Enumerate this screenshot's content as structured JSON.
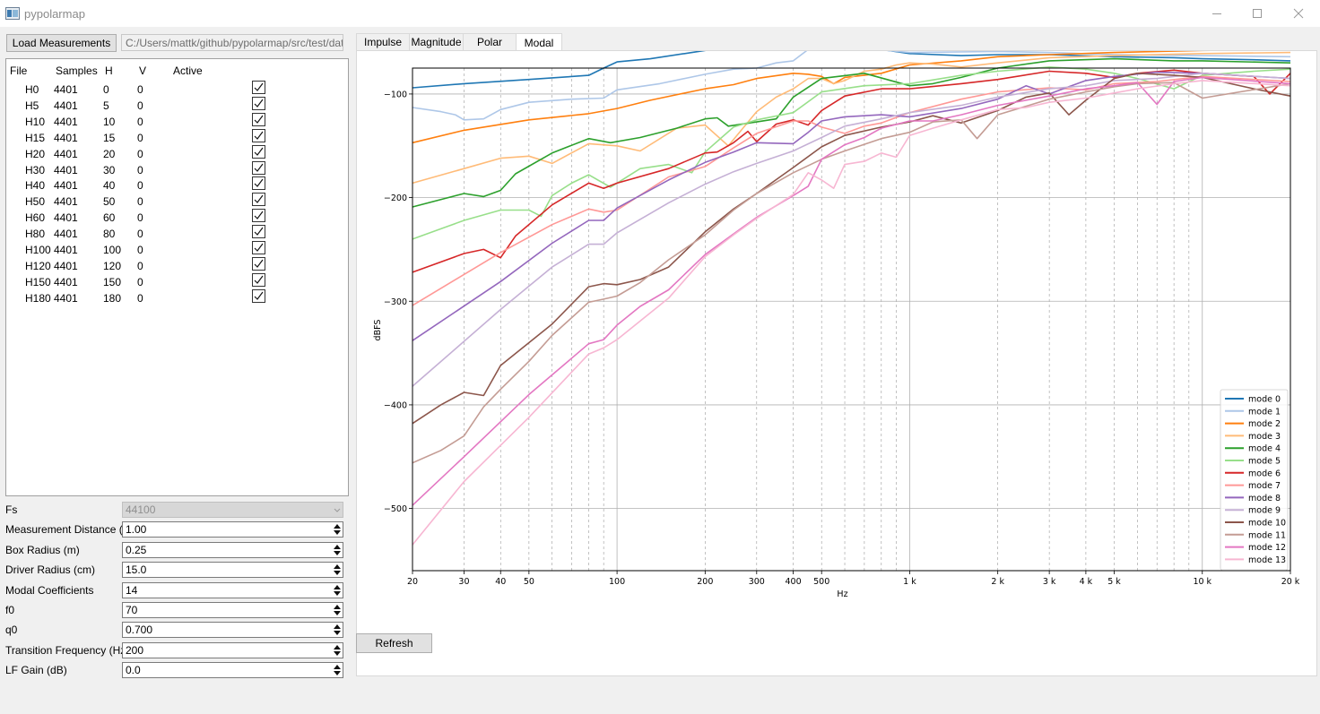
{
  "window": {
    "title": "pypolarmap"
  },
  "toolbar": {
    "load_label": "Load Measurements",
    "path": "C:/Users/mattk/github/pypolarmap/src/test/data"
  },
  "table": {
    "headers": [
      "File",
      "Samples",
      "H",
      "V",
      "Active"
    ],
    "rows": [
      {
        "file": "H0",
        "samples": "4401",
        "h": "0",
        "v": "0",
        "active": true
      },
      {
        "file": "H5",
        "samples": "4401",
        "h": "5",
        "v": "0",
        "active": true
      },
      {
        "file": "H10",
        "samples": "4401",
        "h": "10",
        "v": "0",
        "active": true
      },
      {
        "file": "H15",
        "samples": "4401",
        "h": "15",
        "v": "0",
        "active": true
      },
      {
        "file": "H20",
        "samples": "4401",
        "h": "20",
        "v": "0",
        "active": true
      },
      {
        "file": "H30",
        "samples": "4401",
        "h": "30",
        "v": "0",
        "active": true
      },
      {
        "file": "H40",
        "samples": "4401",
        "h": "40",
        "v": "0",
        "active": true
      },
      {
        "file": "H50",
        "samples": "4401",
        "h": "50",
        "v": "0",
        "active": true
      },
      {
        "file": "H60",
        "samples": "4401",
        "h": "60",
        "v": "0",
        "active": true
      },
      {
        "file": "H80",
        "samples": "4401",
        "h": "80",
        "v": "0",
        "active": true
      },
      {
        "file": "H100",
        "samples": "4401",
        "h": "100",
        "v": "0",
        "active": true
      },
      {
        "file": "H120",
        "samples": "4401",
        "h": "120",
        "v": "0",
        "active": true
      },
      {
        "file": "H150",
        "samples": "4401",
        "h": "150",
        "v": "0",
        "active": true
      },
      {
        "file": "H180",
        "samples": "4401",
        "h": "180",
        "v": "0",
        "active": true
      }
    ]
  },
  "form": [
    {
      "label": "Fs",
      "value": "44100",
      "kind": "combo",
      "disabled": true
    },
    {
      "label": "Measurement Distance (m)",
      "value": "1.00",
      "kind": "spin"
    },
    {
      "label": "Box Radius (m)",
      "value": "0.25",
      "kind": "spin"
    },
    {
      "label": "Driver Radius (cm)",
      "value": "15.0",
      "kind": "spin"
    },
    {
      "label": "Modal Coefficients",
      "value": "14",
      "kind": "spin"
    },
    {
      "label": "f0",
      "value": "70",
      "kind": "spin"
    },
    {
      "label": "q0",
      "value": "0.700",
      "kind": "spin"
    },
    {
      "label": "Transition Frequency (Hz)",
      "value": "200",
      "kind": "spin"
    },
    {
      "label": "LF Gain (dB)",
      "value": "0.0",
      "kind": "spin"
    }
  ],
  "tabs": [
    {
      "label": "Impulse",
      "active": false
    },
    {
      "label": "Magnitude",
      "active": false
    },
    {
      "label": "Polar",
      "active": false
    },
    {
      "label": "Modal",
      "active": true
    }
  ],
  "refresh_label": "Refresh",
  "chart_data": {
    "type": "line",
    "xlabel": "Hz",
    "ylabel": "dBFS",
    "xscale": "log",
    "xlim": [
      20,
      20000
    ],
    "ylim": [
      -560,
      -75
    ],
    "x_ticks": [
      20,
      30,
      40,
      50,
      100,
      200,
      300,
      400,
      500,
      1000,
      2000,
      3000,
      4000,
      5000,
      10000,
      20000
    ],
    "x_tick_labels": [
      "20",
      "30",
      "40",
      "50",
      "100",
      "200",
      "300",
      "400",
      "500",
      "1 k",
      "2 k",
      "3 k",
      "4 k",
      "5 k",
      "10 k",
      "20 k"
    ],
    "y_ticks": [
      -100,
      -200,
      -300,
      -400,
      -500
    ],
    "y_tick_labels": [
      "−100",
      "−200",
      "−300",
      "−400",
      "−500"
    ],
    "grid": true,
    "legend_position": "lower-right",
    "series": [
      {
        "name": "mode 0",
        "color": "#1f77b4",
        "x": [
          20,
          30,
          50,
          80,
          90,
          100,
          130,
          200,
          300,
          400,
          450,
          600,
          800,
          1000,
          1500,
          2000,
          3000,
          5000,
          8000,
          10000,
          15000,
          20000
        ],
        "y": [
          -94,
          -90,
          -86,
          -82,
          -75,
          -69,
          -66,
          -58,
          -52,
          -48,
          -53,
          -55,
          -57,
          -61,
          -63,
          -62,
          -62,
          -64,
          -65,
          -66,
          -67,
          -68
        ]
      },
      {
        "name": "mode 1",
        "color": "#aec7e8",
        "x": [
          20,
          25,
          28,
          30,
          35,
          40,
          50,
          70,
          90,
          100,
          140,
          200,
          250,
          300,
          350,
          400,
          450,
          500,
          700,
          1000,
          2000,
          3000,
          5000,
          10000,
          20000
        ],
        "y": [
          -113,
          -117,
          -120,
          -125,
          -124,
          -115,
          -108,
          -105,
          -104,
          -96,
          -90,
          -81,
          -76,
          -75,
          -70,
          -68,
          -57,
          -56,
          -56,
          -60,
          -59,
          -60,
          -62,
          -63,
          -64
        ]
      },
      {
        "name": "mode 2",
        "color": "#ff7f0e",
        "x": [
          20,
          30,
          50,
          80,
          100,
          130,
          200,
          250,
          300,
          400,
          450,
          500,
          550,
          600,
          800,
          1000,
          1500,
          2000,
          3000,
          5000,
          10000,
          20000
        ],
        "y": [
          -147,
          -135,
          -125,
          -119,
          -114,
          -106,
          -95,
          -91,
          -85,
          -80,
          -81,
          -83,
          -90,
          -84,
          -80,
          -72,
          -68,
          -64,
          -62,
          -60,
          -58,
          -57
        ]
      },
      {
        "name": "mode 3",
        "color": "#ffbb78",
        "x": [
          20,
          30,
          40,
          50,
          60,
          80,
          100,
          120,
          160,
          200,
          240,
          300,
          350,
          400,
          450,
          500,
          550,
          600,
          700,
          800,
          900,
          1000,
          1200,
          1500,
          2000,
          3000,
          5000,
          10000,
          20000
        ],
        "y": [
          -186,
          -172,
          -162,
          -160,
          -167,
          -148,
          -150,
          -155,
          -133,
          -130,
          -150,
          -117,
          -103,
          -95,
          -85,
          -85,
          -90,
          -87,
          -78,
          -76,
          -72,
          -70,
          -71,
          -74,
          -70,
          -65,
          -63,
          -61,
          -60
        ]
      },
      {
        "name": "mode 4",
        "color": "#2ca02c",
        "x": [
          20,
          30,
          35,
          40,
          45,
          60,
          80,
          95,
          120,
          160,
          200,
          220,
          240,
          300,
          350,
          400,
          500,
          700,
          1000,
          1200,
          1500,
          2000,
          3000,
          5000,
          8000,
          10000,
          20000
        ],
        "y": [
          -209,
          -196,
          -199,
          -193,
          -177,
          -157,
          -143,
          -147,
          -142,
          -133,
          -124,
          -123,
          -131,
          -127,
          -124,
          -103,
          -85,
          -80,
          -92,
          -90,
          -84,
          -75,
          -68,
          -66,
          -68,
          -68,
          -70
        ]
      },
      {
        "name": "mode 5",
        "color": "#98df8a",
        "x": [
          20,
          30,
          40,
          50,
          55,
          60,
          70,
          80,
          95,
          100,
          120,
          150,
          180,
          200,
          250,
          300,
          400,
          500,
          700,
          1000,
          1500,
          2000,
          3000,
          4000,
          5000,
          6000,
          8000,
          10000,
          15000,
          20000
        ],
        "y": [
          -240,
          -222,
          -212,
          -212,
          -218,
          -198,
          -186,
          -178,
          -190,
          -186,
          -172,
          -168,
          -176,
          -156,
          -132,
          -125,
          -118,
          -98,
          -92,
          -90,
          -82,
          -78,
          -74,
          -76,
          -80,
          -85,
          -95,
          -82,
          -78,
          -76
        ]
      },
      {
        "name": "mode 6",
        "color": "#d62728",
        "x": [
          20,
          30,
          35,
          40,
          45,
          60,
          80,
          90,
          100,
          150,
          200,
          220,
          250,
          280,
          300,
          350,
          400,
          450,
          500,
          600,
          800,
          1000,
          1500,
          2000,
          3000,
          4000,
          5000,
          6000,
          8000,
          10000,
          15000,
          17000,
          20000
        ],
        "y": [
          -272,
          -254,
          -250,
          -258,
          -237,
          -207,
          -186,
          -191,
          -186,
          -172,
          -157,
          -156,
          -147,
          -136,
          -146,
          -129,
          -125,
          -130,
          -116,
          -102,
          -95,
          -95,
          -90,
          -86,
          -78,
          -80,
          -84,
          -80,
          -77,
          -80,
          -83,
          -100,
          -80
        ]
      },
      {
        "name": "mode 7",
        "color": "#ff9896",
        "x": [
          20,
          40,
          60,
          80,
          90,
          100,
          150,
          200,
          250,
          300,
          400,
          450,
          500,
          600,
          700,
          800,
          1000,
          1500,
          2000,
          3000,
          4000,
          5000,
          7000,
          10000,
          20000
        ],
        "y": [
          -304,
          -253,
          -226,
          -211,
          -214,
          -212,
          -180,
          -170,
          -152,
          -138,
          -126,
          -126,
          -132,
          -138,
          -131,
          -128,
          -118,
          -105,
          -98,
          -94,
          -96,
          -90,
          -88,
          -83,
          -88
        ]
      },
      {
        "name": "mode 8",
        "color": "#9467bd",
        "x": [
          20,
          40,
          60,
          80,
          90,
          100,
          150,
          200,
          250,
          300,
          400,
          450,
          500,
          600,
          800,
          1000,
          1500,
          2000,
          2500,
          3000,
          3500,
          4000,
          5000,
          7000,
          10000,
          20000
        ],
        "y": [
          -338,
          -281,
          -244,
          -222,
          -222,
          -210,
          -183,
          -166,
          -156,
          -147,
          -148,
          -137,
          -126,
          -122,
          -120,
          -122,
          -114,
          -105,
          -92,
          -100,
          -93,
          -87,
          -83,
          -79,
          -80,
          -85
        ]
      },
      {
        "name": "mode 9",
        "color": "#c5b0d5",
        "x": [
          20,
          40,
          60,
          80,
          90,
          100,
          150,
          200,
          250,
          300,
          400,
          500,
          600,
          800,
          1000,
          1500,
          2000,
          3000,
          4000,
          5000,
          7000,
          10000,
          20000
        ],
        "y": [
          -382,
          -308,
          -267,
          -245,
          -245,
          -234,
          -205,
          -187,
          -175,
          -167,
          -155,
          -142,
          -131,
          -124,
          -118,
          -111,
          -103,
          -95,
          -92,
          -87,
          -85,
          -80,
          -85
        ]
      },
      {
        "name": "mode 10",
        "color": "#8c564b",
        "x": [
          20,
          25,
          30,
          35,
          40,
          50,
          60,
          80,
          90,
          100,
          120,
          150,
          200,
          250,
          300,
          400,
          500,
          600,
          800,
          1000,
          1200,
          1500,
          2000,
          2500,
          3000,
          3500,
          4000,
          5000,
          6000,
          8000,
          10000,
          15000,
          20000
        ],
        "y": [
          -418,
          -400,
          -388,
          -391,
          -362,
          -340,
          -322,
          -286,
          -283,
          -284,
          -279,
          -267,
          -233,
          -211,
          -196,
          -171,
          -151,
          -140,
          -132,
          -127,
          -121,
          -128,
          -116,
          -103,
          -99,
          -120,
          -106,
          -85,
          -80,
          -82,
          -84,
          -95,
          -102
        ]
      },
      {
        "name": "mode 11",
        "color": "#c49c94",
        "x": [
          20,
          25,
          30,
          35,
          40,
          50,
          60,
          80,
          90,
          100,
          120,
          150,
          200,
          250,
          300,
          400,
          500,
          600,
          800,
          1000,
          1200,
          1500,
          1700,
          2000,
          3000,
          4000,
          5000,
          6000,
          8000,
          10000,
          20000
        ],
        "y": [
          -456,
          -444,
          -430,
          -402,
          -385,
          -358,
          -333,
          -301,
          -298,
          -295,
          -282,
          -260,
          -236,
          -212,
          -196,
          -176,
          -163,
          -155,
          -143,
          -137,
          -127,
          -125,
          -143,
          -120,
          -105,
          -98,
          -93,
          -90,
          -89,
          -104,
          -90
        ]
      },
      {
        "name": "mode 12",
        "color": "#e377c2",
        "x": [
          20,
          30,
          50,
          80,
          90,
          100,
          120,
          150,
          200,
          250,
          300,
          400,
          450,
          500,
          600,
          700,
          800,
          1000,
          1200,
          1500,
          2000,
          3000,
          4000,
          5000,
          6000,
          7000,
          8000,
          10000,
          20000
        ],
        "y": [
          -497,
          -450,
          -390,
          -341,
          -337,
          -323,
          -305,
          -289,
          -255,
          -235,
          -219,
          -198,
          -189,
          -163,
          -149,
          -142,
          -133,
          -126,
          -126,
          -120,
          -111,
          -102,
          -95,
          -92,
          -89,
          -110,
          -88,
          -84,
          -90
        ]
      },
      {
        "name": "mode 13",
        "color": "#f7b6d2",
        "x": [
          20,
          30,
          50,
          80,
          90,
          100,
          150,
          200,
          250,
          300,
          400,
          450,
          500,
          550,
          600,
          700,
          800,
          900,
          1000,
          1200,
          1500,
          2000,
          2500,
          3000,
          4000,
          5000,
          6000,
          8000,
          10000,
          20000
        ],
        "y": [
          -535,
          -474,
          -412,
          -351,
          -345,
          -337,
          -297,
          -257,
          -236,
          -220,
          -197,
          -176,
          -183,
          -191,
          -168,
          -165,
          -157,
          -161,
          -140,
          -133,
          -125,
          -115,
          -113,
          -108,
          -104,
          -99,
          -95,
          -90,
          -87,
          -92
        ]
      }
    ]
  }
}
